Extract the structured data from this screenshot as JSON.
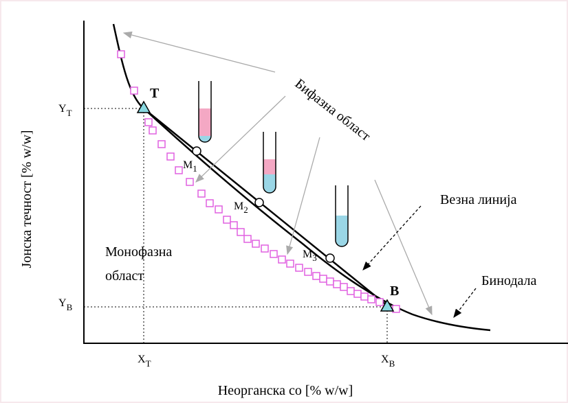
{
  "axes": {
    "y_label": "Јонска течност [% w/w]",
    "x_label": "Неорганска со [% w/w]",
    "y_ticks": [
      {
        "main": "Y",
        "sub": "T"
      },
      {
        "main": "Y",
        "sub": "B"
      }
    ],
    "x_ticks": [
      {
        "main": "X",
        "sub": "T"
      },
      {
        "main": "X",
        "sub": "B"
      }
    ]
  },
  "points": {
    "top": "T",
    "bottom": "B",
    "mixtures": [
      {
        "main": "M",
        "sub": "1"
      },
      {
        "main": "M",
        "sub": "2"
      },
      {
        "main": "M",
        "sub": "3"
      }
    ]
  },
  "labels": {
    "biphasic": "Бифазна област",
    "monophasic": [
      "Монофазна",
      "област"
    ],
    "tie_line": "Везна линија",
    "binodal": "Бинодала"
  }
}
